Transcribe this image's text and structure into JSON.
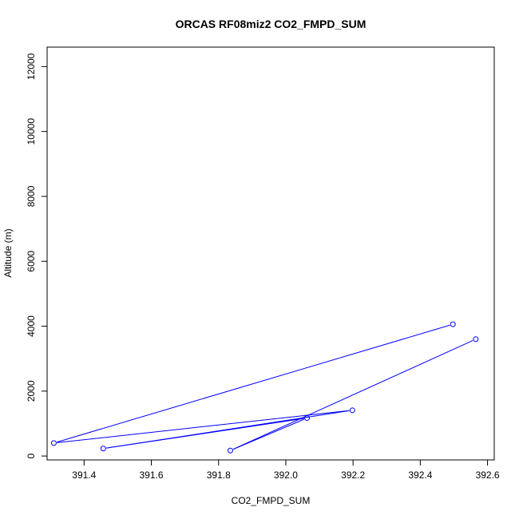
{
  "chart_data": {
    "type": "scatter",
    "title": "ORCAS RF08miz2 CO2_FMPD_SUM",
    "xlabel": "CO2_FMPD_SUM",
    "ylabel": "Altitude (m)",
    "xlim": [
      391.29,
      392.62
    ],
    "ylim": [
      -120,
      12600
    ],
    "x_ticks": [
      "391.4",
      "391.6",
      "391.8",
      "392.0",
      "392.2",
      "392.4",
      "392.6"
    ],
    "x_tick_values": [
      391.4,
      391.6,
      391.8,
      392.0,
      392.2,
      392.4,
      392.6
    ],
    "y_ticks": [
      "0",
      "2000",
      "4000",
      "6000",
      "8000",
      "10000",
      "12000"
    ],
    "y_tick_values": [
      0,
      2000,
      4000,
      6000,
      8000,
      10000,
      12000
    ],
    "color": "#0000ff",
    "grid": false,
    "series": [
      {
        "points": [
          {
            "x": 392.565,
            "y": 3600
          },
          {
            "x": 391.835,
            "y": 170
          },
          {
            "x": 392.063,
            "y": 1170
          },
          {
            "x": 391.457,
            "y": 230
          },
          {
            "x": 392.198,
            "y": 1410
          },
          {
            "x": 391.31,
            "y": 400
          },
          {
            "x": 392.497,
            "y": 4060
          }
        ]
      }
    ]
  }
}
